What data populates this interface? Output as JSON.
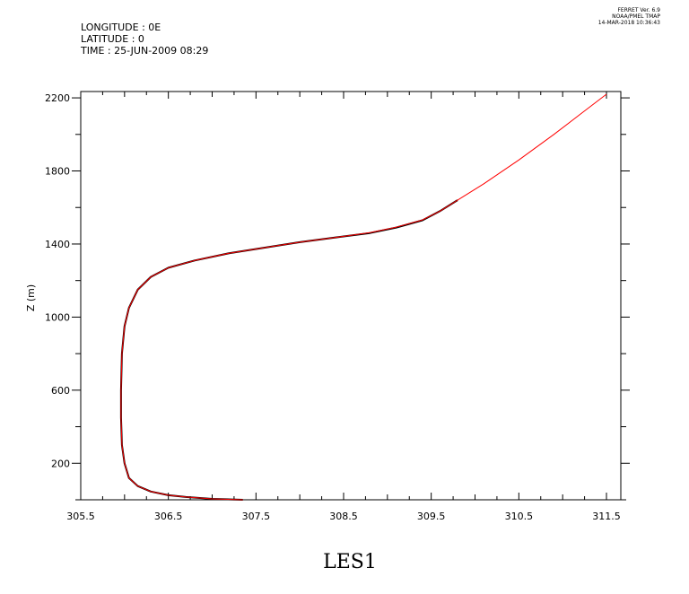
{
  "header": {
    "longitude": "LONGITUDE : 0E",
    "latitude": "LATITUDE : 0",
    "time": "TIME : 25-JUN-2009 08:29"
  },
  "stamp": {
    "line1": "FERRET Ver. 6.9",
    "line2": "NOAA/PMEL TMAP",
    "line3": "14-MAR-2018 10:36:43"
  },
  "chart_data": {
    "type": "line",
    "title": "LES1",
    "xlabel": "",
    "ylabel": "Z (m)",
    "xlim": [
      305.5,
      311.5
    ],
    "ylim": [
      0,
      2220
    ],
    "x_ticks": [
      "305.5",
      "306.5",
      "307.5",
      "308.5",
      "309.5",
      "310.5",
      "311.5"
    ],
    "x_tick_values": [
      305.5,
      306.5,
      307.5,
      308.5,
      309.5,
      310.5,
      311.5
    ],
    "y_ticks": [
      "200",
      "600",
      "1000",
      "1400",
      "1800",
      "2200"
    ],
    "y_tick_values": [
      200,
      600,
      1000,
      1400,
      1800,
      2200
    ],
    "grid": false,
    "series": [
      {
        "color": "#000000",
        "points": [
          [
            307.35,
            0
          ],
          [
            307.0,
            5
          ],
          [
            306.7,
            15
          ],
          [
            306.5,
            25
          ],
          [
            306.3,
            45
          ],
          [
            306.15,
            75
          ],
          [
            306.05,
            120
          ],
          [
            306.0,
            200
          ],
          [
            305.97,
            300
          ],
          [
            305.96,
            450
          ],
          [
            305.96,
            600
          ],
          [
            305.97,
            800
          ],
          [
            306.0,
            950
          ],
          [
            306.05,
            1050
          ],
          [
            306.15,
            1150
          ],
          [
            306.3,
            1220
          ],
          [
            306.5,
            1270
          ],
          [
            306.8,
            1310
          ],
          [
            307.2,
            1350
          ],
          [
            307.6,
            1380
          ],
          [
            308.0,
            1410
          ],
          [
            308.4,
            1435
          ],
          [
            308.8,
            1460
          ],
          [
            309.1,
            1490
          ],
          [
            309.4,
            1530
          ],
          [
            309.6,
            1580
          ],
          [
            309.8,
            1640
          ]
        ]
      },
      {
        "color": "#ff0000",
        "points": [
          [
            307.35,
            0
          ],
          [
            307.0,
            5
          ],
          [
            306.7,
            15
          ],
          [
            306.5,
            25
          ],
          [
            306.3,
            45
          ],
          [
            306.15,
            75
          ],
          [
            306.05,
            120
          ],
          [
            306.0,
            200
          ],
          [
            305.97,
            300
          ],
          [
            305.96,
            450
          ],
          [
            305.96,
            600
          ],
          [
            305.97,
            800
          ],
          [
            306.0,
            950
          ],
          [
            306.05,
            1050
          ],
          [
            306.15,
            1150
          ],
          [
            306.3,
            1220
          ],
          [
            306.5,
            1270
          ],
          [
            306.8,
            1310
          ],
          [
            307.2,
            1350
          ],
          [
            307.6,
            1380
          ],
          [
            308.0,
            1410
          ],
          [
            308.4,
            1435
          ],
          [
            308.8,
            1462
          ],
          [
            309.1,
            1492
          ],
          [
            309.4,
            1532
          ],
          [
            309.6,
            1580
          ],
          [
            309.8,
            1640
          ],
          [
            310.1,
            1730
          ],
          [
            310.5,
            1860
          ],
          [
            310.9,
            2000
          ],
          [
            311.2,
            2110
          ],
          [
            311.5,
            2220
          ]
        ]
      }
    ]
  }
}
